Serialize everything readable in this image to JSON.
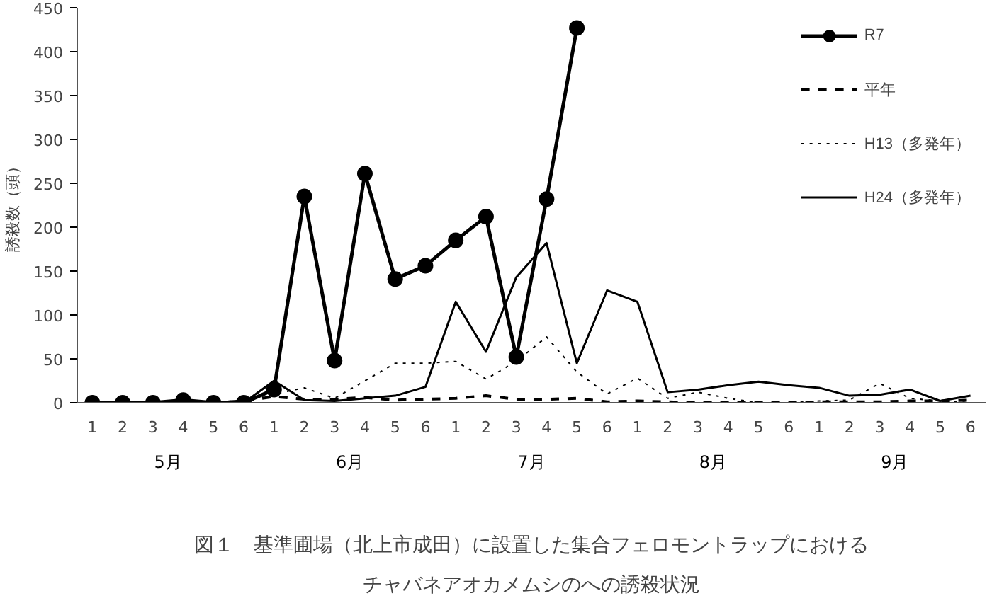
{
  "chart_data": {
    "type": "line",
    "title": "図１　基準圃場（北上市成田）に設置した集合フェロモントラップにおける",
    "subtitle": "チャバネアオカメムシのへの誘殺状況",
    "ylabel": "誘殺数（頭）",
    "categories": [
      "1",
      "2",
      "3",
      "4",
      "5",
      "6",
      "1",
      "2",
      "3",
      "4",
      "5",
      "6",
      "1",
      "2",
      "3",
      "4",
      "5",
      "6",
      "1",
      "2",
      "3",
      "4",
      "5",
      "6",
      "1",
      "2",
      "3",
      "4",
      "5",
      "6"
    ],
    "annotations": [
      "5月",
      "6月",
      "7月",
      "8月",
      "9月"
    ],
    "ylim": [
      0,
      450
    ],
    "yticks": [
      0,
      50,
      100,
      150,
      200,
      250,
      300,
      350,
      400,
      450
    ],
    "grid": false,
    "legend": "top right",
    "series": [
      {
        "name": "R7",
        "color": "#000000",
        "marker": "circle",
        "line_style": "solid",
        "values": [
          0,
          0,
          0,
          3,
          0,
          0,
          15,
          235,
          48,
          261,
          141,
          156,
          185,
          212,
          52,
          232,
          427,
          null,
          null,
          null,
          null,
          null,
          null,
          null,
          null,
          null,
          null,
          null,
          null,
          null
        ]
      },
      {
        "name": "平年",
        "color": "#000000",
        "marker": "none",
        "line_style": "dashed",
        "values": [
          0,
          0,
          0,
          0,
          0,
          2,
          7,
          4,
          4,
          6,
          3,
          4,
          5,
          8,
          4,
          4,
          5,
          1,
          2,
          1,
          0,
          0,
          0,
          0,
          1,
          1,
          1,
          2,
          2,
          3
        ]
      },
      {
        "name": "H13（多発年）",
        "color": "#000000",
        "marker": "none",
        "line_style": "dotted",
        "values": [
          0,
          0,
          0,
          0,
          0,
          3,
          10,
          17,
          5,
          25,
          45,
          45,
          47,
          27,
          47,
          75,
          35,
          10,
          28,
          5,
          12,
          5,
          0,
          0,
          2,
          3,
          22,
          5,
          2,
          0
        ]
      },
      {
        "name": "H24（多発年）",
        "color": "#000000",
        "marker": "none",
        "line_style": "solid",
        "values": [
          0,
          0,
          0,
          0,
          0,
          0,
          25,
          3,
          2,
          5,
          8,
          18,
          115,
          58,
          143,
          182,
          45,
          128,
          115,
          12,
          15,
          20,
          24,
          20,
          17,
          8,
          9,
          15,
          2,
          8
        ]
      }
    ]
  }
}
